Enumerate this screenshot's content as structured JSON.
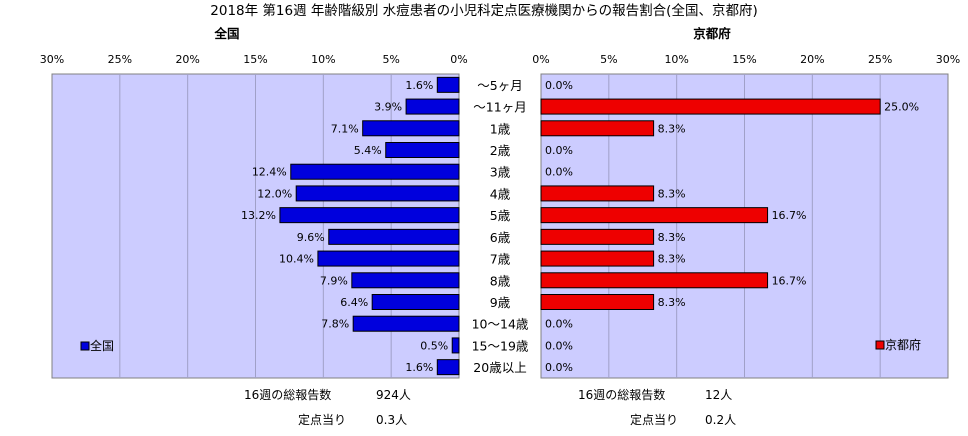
{
  "title": "2018年 第16週 年齢階級別 水痘患者の小児科定点医療機関からの報告割合(全国、京都府)",
  "chart_data": [
    {
      "type": "bar",
      "orientation": "horizontal",
      "direction": "right-to-left",
      "title": "全国",
      "legend": "全国",
      "legend_position": "bottom-left",
      "categories": [
        "〜5ヶ月",
        "〜11ヶ月",
        "1歳",
        "2歳",
        "3歳",
        "4歳",
        "5歳",
        "6歳",
        "7歳",
        "8歳",
        "9歳",
        "10〜14歳",
        "15〜19歳",
        "20歳以上"
      ],
      "values": [
        1.6,
        3.9,
        7.1,
        5.4,
        12.4,
        12.0,
        13.2,
        9.6,
        10.4,
        7.9,
        6.4,
        7.8,
        0.5,
        1.6
      ],
      "data_labels": [
        "1.6%",
        "3.9%",
        "7.1%",
        "5.4%",
        "12.4%",
        "12.0%",
        "13.2%",
        "9.6%",
        "10.4%",
        "7.9%",
        "6.4%",
        "7.8%",
        "0.5%",
        "1.6%"
      ],
      "xlim": [
        0,
        30
      ],
      "ticks": [
        "30%",
        "25%",
        "20%",
        "15%",
        "10%",
        "5%",
        "0%"
      ],
      "grid": true,
      "color": "#0000dd"
    },
    {
      "type": "bar",
      "orientation": "horizontal",
      "direction": "left-to-right",
      "title": "京都府",
      "legend": "京都府",
      "legend_position": "bottom-right",
      "categories": [
        "〜5ヶ月",
        "〜11ヶ月",
        "1歳",
        "2歳",
        "3歳",
        "4歳",
        "5歳",
        "6歳",
        "7歳",
        "8歳",
        "9歳",
        "10〜14歳",
        "15〜19歳",
        "20歳以上"
      ],
      "values": [
        0.0,
        25.0,
        8.3,
        0.0,
        0.0,
        8.3,
        16.7,
        8.3,
        8.3,
        16.7,
        8.3,
        0.0,
        0.0,
        0.0
      ],
      "data_labels": [
        "0.0%",
        "25.0%",
        "8.3%",
        "0.0%",
        "0.0%",
        "8.3%",
        "16.7%",
        "8.3%",
        "8.3%",
        "16.7%",
        "8.3%",
        "0.0%",
        "0.0%",
        "0.0%"
      ],
      "xlim": [
        0,
        30
      ],
      "ticks": [
        "0%",
        "5%",
        "10%",
        "15%",
        "20%",
        "25%",
        "30%"
      ],
      "grid": true,
      "color": "#ee0000"
    }
  ],
  "footer": {
    "national": {
      "total_label": "16週の総報告数",
      "total_value": "924人",
      "per_label": "定点当り",
      "per_value": "0.3人"
    },
    "kyoto": {
      "total_label": "16週の総報告数",
      "total_value": "12人",
      "per_label": "定点当り",
      "per_value": "0.2人"
    }
  },
  "colors": {
    "plot_background": "#ccccff",
    "national_bar": "#0000dd",
    "kyoto_bar": "#ee0000",
    "bar_edge": "#000000"
  }
}
